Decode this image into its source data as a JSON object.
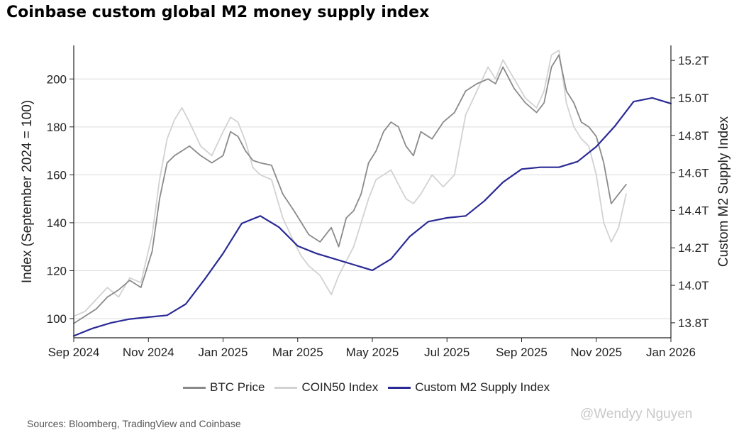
{
  "chart_data": {
    "type": "line",
    "title": "Coinbase custom global M2 money supply index",
    "ylabel": "Index (September 2024 = 100)",
    "y2label": "Custom M2 Supply Index",
    "xlabel": "",
    "grid": true,
    "x_ticks": [
      "Sep 2024",
      "Nov 2024",
      "Jan 2025",
      "Mar 2025",
      "May 2025",
      "Jul 2025",
      "Sep 2025",
      "Nov 2025",
      "Jan 2026"
    ],
    "y_ticks": [
      100,
      120,
      140,
      160,
      180,
      200
    ],
    "y2_ticks": [
      "13.8T",
      "14.0T",
      "14.2T",
      "14.4T",
      "14.6T",
      "14.8T",
      "15.0T",
      "15.2T"
    ],
    "ylim": [
      92,
      214
    ],
    "y2lim": [
      13.72,
      15.28
    ],
    "xlim": [
      0,
      16
    ],
    "legend_position": "bottom",
    "series": [
      {
        "name": "BTC Price",
        "axis": "left",
        "color": "#8a8a8a",
        "x": [
          0,
          0.3,
          0.6,
          0.9,
          1.2,
          1.5,
          1.8,
          2.1,
          2.3,
          2.5,
          2.7,
          2.9,
          3.1,
          3.4,
          3.7,
          4.0,
          4.2,
          4.4,
          4.6,
          4.8,
          5.0,
          5.3,
          5.6,
          5.9,
          6.1,
          6.3,
          6.6,
          6.9,
          7.1,
          7.3,
          7.5,
          7.7,
          7.9,
          8.1,
          8.3,
          8.5,
          8.7,
          8.9,
          9.1,
          9.3,
          9.6,
          9.9,
          10.2,
          10.5,
          10.8,
          11.1,
          11.3,
          11.5,
          11.8,
          12.1,
          12.4,
          12.6,
          12.8,
          13.0,
          13.2,
          13.4,
          13.6,
          13.8,
          14.0,
          14.2,
          14.4,
          14.6,
          14.8
        ],
        "values": [
          98,
          101,
          104,
          109,
          112,
          116,
          113,
          128,
          150,
          165,
          168,
          170,
          172,
          168,
          165,
          168,
          178,
          176,
          170,
          166,
          165,
          164,
          152,
          145,
          140,
          135,
          132,
          138,
          130,
          142,
          145,
          152,
          165,
          170,
          178,
          182,
          180,
          172,
          168,
          178,
          175,
          182,
          186,
          195,
          198,
          200,
          198,
          205,
          196,
          190,
          186,
          190,
          205,
          210,
          195,
          190,
          182,
          180,
          176,
          165,
          148,
          152,
          156
        ]
      },
      {
        "name": "COIN50 Index",
        "axis": "left",
        "color": "#d2d2d2",
        "x": [
          0,
          0.3,
          0.6,
          0.9,
          1.2,
          1.5,
          1.8,
          2.1,
          2.3,
          2.5,
          2.7,
          2.9,
          3.1,
          3.4,
          3.7,
          4.0,
          4.2,
          4.4,
          4.6,
          4.8,
          5.0,
          5.3,
          5.6,
          5.9,
          6.1,
          6.3,
          6.6,
          6.9,
          7.1,
          7.3,
          7.5,
          7.7,
          7.9,
          8.1,
          8.3,
          8.5,
          8.7,
          8.9,
          9.1,
          9.3,
          9.6,
          9.9,
          10.2,
          10.5,
          10.8,
          11.1,
          11.3,
          11.5,
          11.8,
          12.1,
          12.4,
          12.6,
          12.8,
          13.0,
          13.2,
          13.4,
          13.6,
          13.8,
          14.0,
          14.2,
          14.4,
          14.6,
          14.8
        ],
        "values": [
          101,
          103,
          108,
          113,
          109,
          117,
          115,
          135,
          158,
          175,
          183,
          188,
          182,
          172,
          168,
          178,
          184,
          182,
          174,
          163,
          160,
          158,
          142,
          132,
          126,
          122,
          118,
          110,
          118,
          124,
          130,
          140,
          150,
          158,
          160,
          162,
          156,
          150,
          148,
          152,
          160,
          155,
          160,
          185,
          195,
          205,
          200,
          208,
          200,
          192,
          188,
          195,
          210,
          212,
          190,
          180,
          175,
          172,
          160,
          140,
          132,
          138,
          152
        ]
      },
      {
        "name": "Custom M2 Supply Index",
        "axis": "right",
        "color": "#2a2a96",
        "x": [
          0,
          0.5,
          1.0,
          1.5,
          2.0,
          2.5,
          3.0,
          3.5,
          4.0,
          4.5,
          5.0,
          5.5,
          6.0,
          6.5,
          7.0,
          7.5,
          8.0,
          8.5,
          9.0,
          9.5,
          10.0,
          10.5,
          11.0,
          11.5,
          12.0,
          12.5,
          13.0,
          13.5,
          14.0,
          14.5,
          15.0,
          15.5,
          16.0
        ],
        "values": [
          13.73,
          13.77,
          13.8,
          13.82,
          13.83,
          13.84,
          13.9,
          14.03,
          14.17,
          14.33,
          14.37,
          14.31,
          14.21,
          14.17,
          14.14,
          14.11,
          14.08,
          14.14,
          14.26,
          14.34,
          14.36,
          14.37,
          14.45,
          14.55,
          14.62,
          14.63,
          14.63,
          14.66,
          14.74,
          14.85,
          14.98,
          15.0,
          14.97
        ]
      }
    ]
  },
  "footer": {
    "sources": "Sources: Bloomberg, TradingView and Coinbase",
    "watermark": "@Wendyy Nguyen"
  },
  "colors": {
    "btc": "#8a8a8a",
    "coin50": "#d2d2d2",
    "m2": "#2a2a96",
    "grid": "#dcdcdc",
    "axis": "#222222"
  }
}
